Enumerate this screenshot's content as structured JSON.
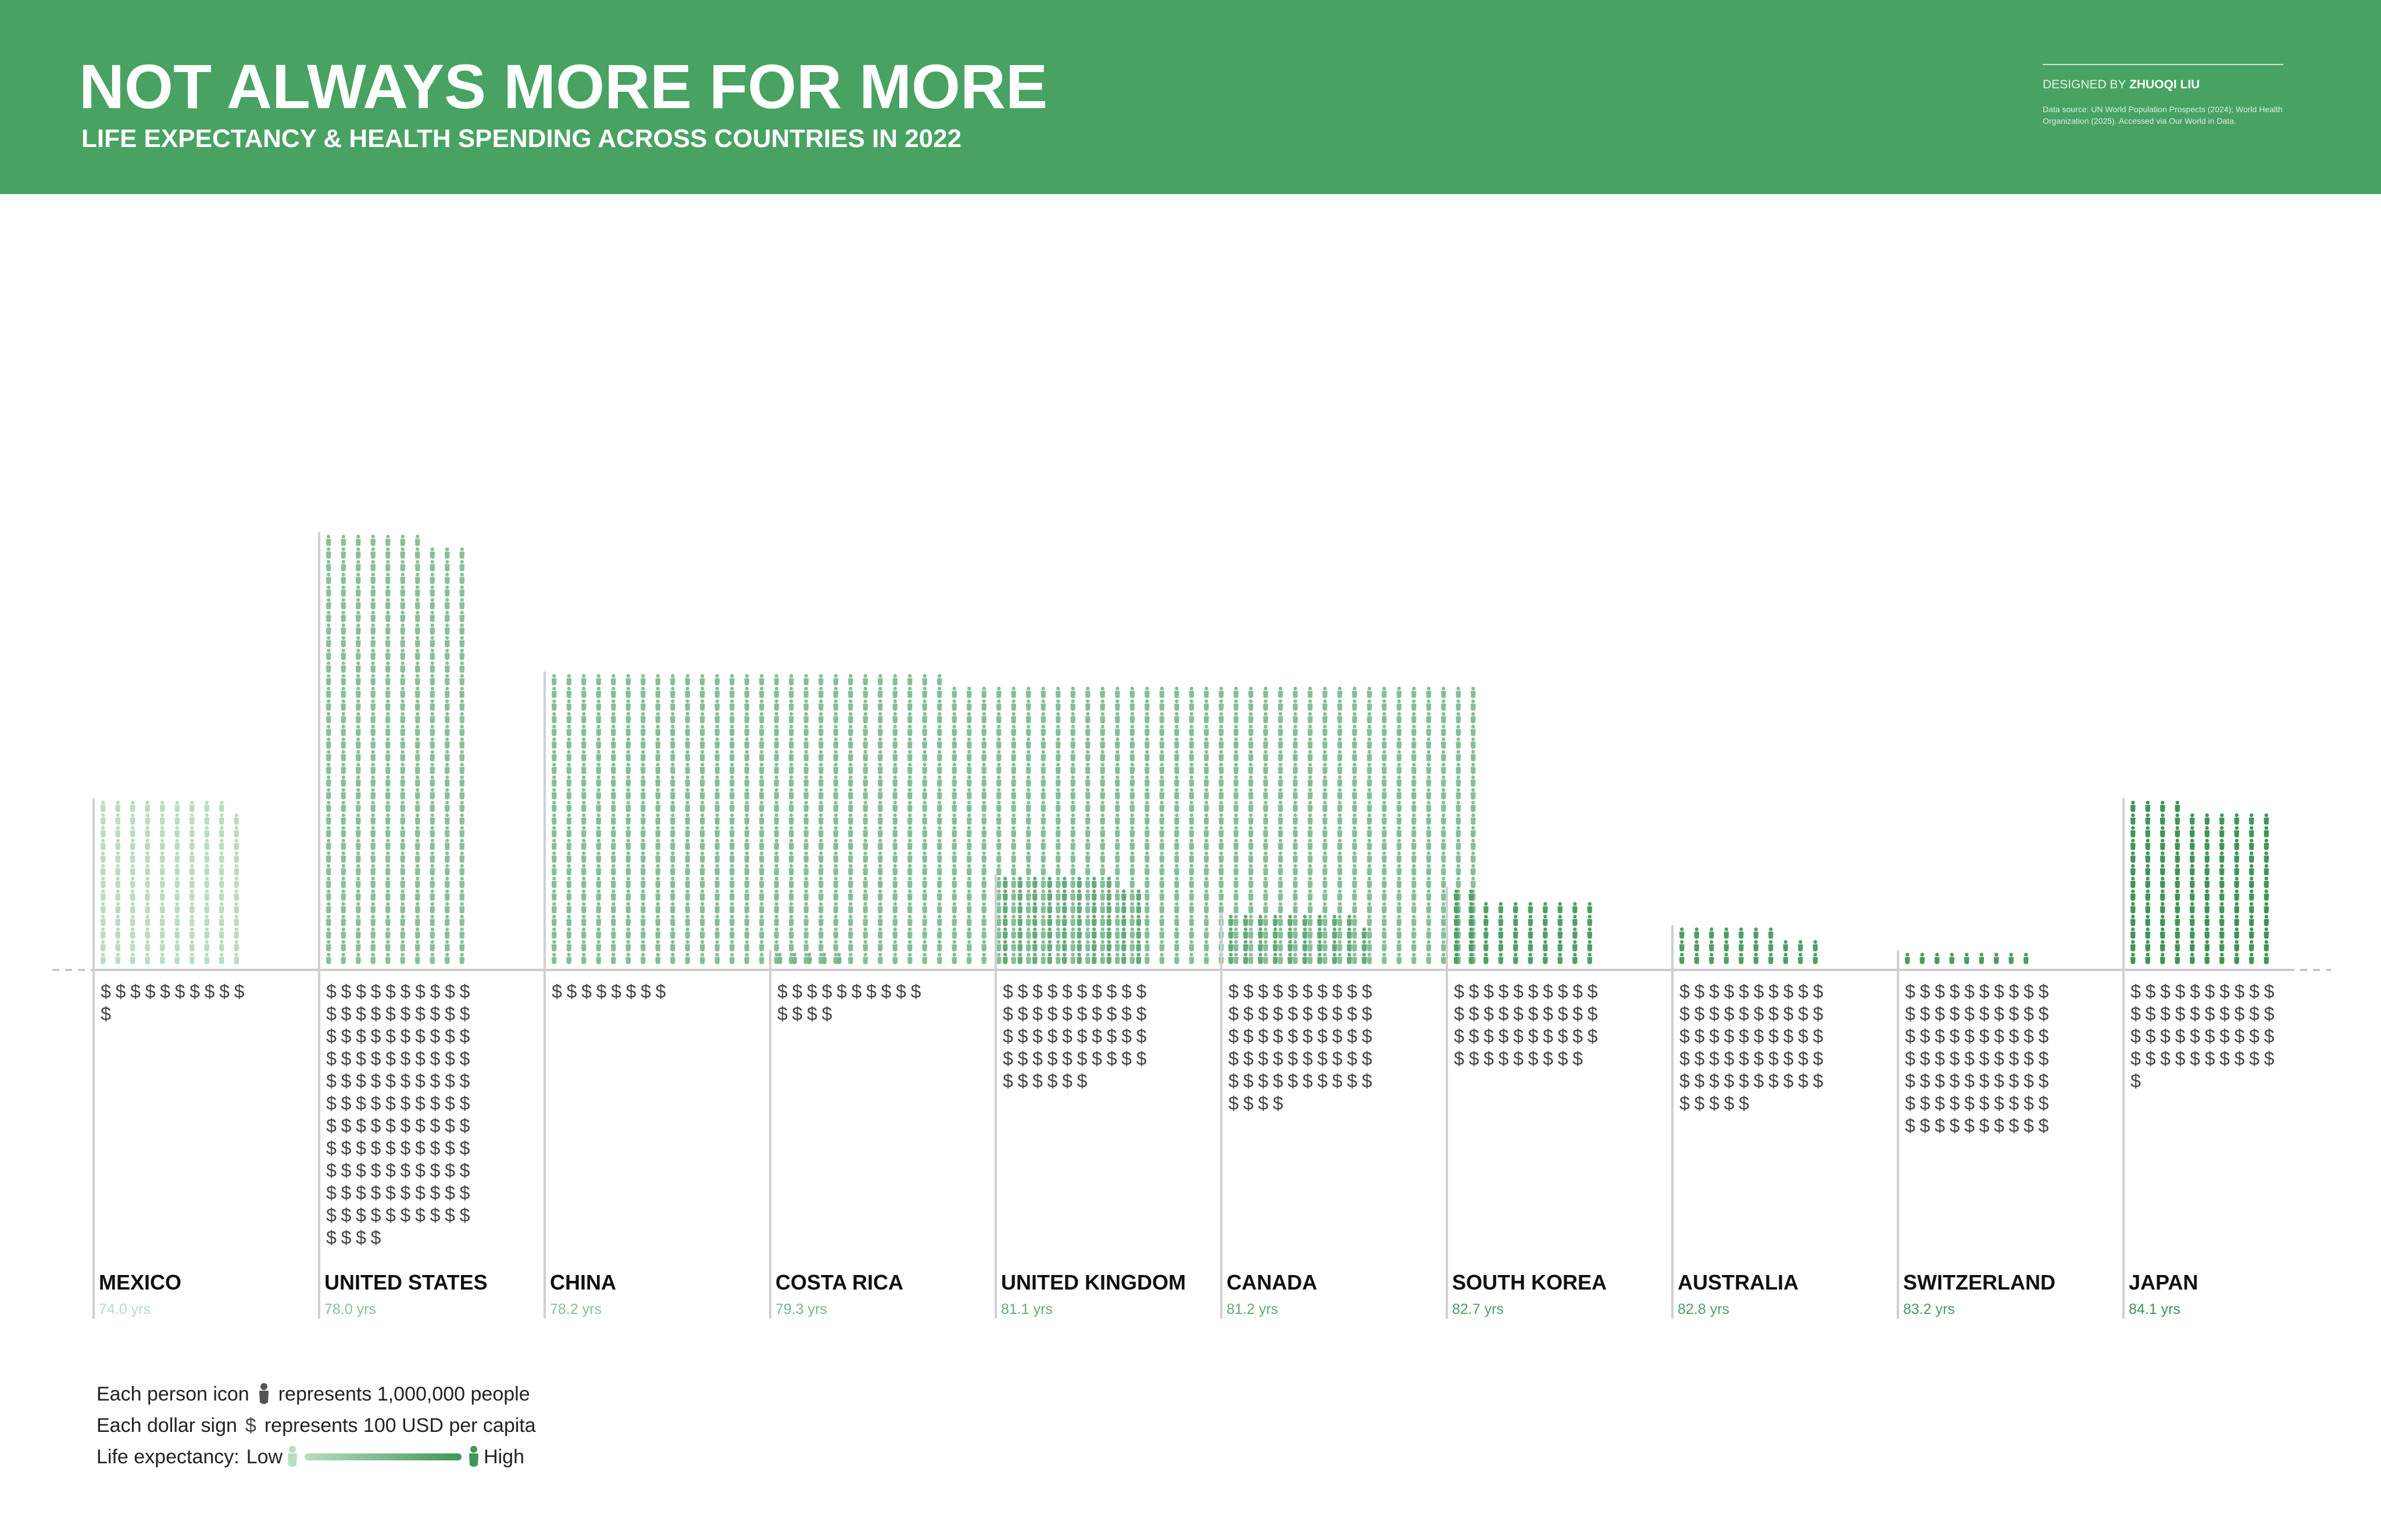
{
  "header": {
    "title": "NOT ALWAYS MORE FOR MORE",
    "subtitle": "LIFE EXPECTANCY & HEALTH SPENDING ACROSS COUNTRIES IN 2022",
    "designed_by_prefix": "DESIGNED BY ",
    "designer": "ZHUOQI LIU",
    "source": "Data source: UN World Population Prospects (2024); World Health Organization (2025). Accessed via Our World in Data."
  },
  "colors": {
    "header_bg": "#48a262",
    "low": "#b9dcc3",
    "high": "#3f9657",
    "dollar": "#444444",
    "label": "#111111"
  },
  "legend": {
    "person_prefix": "Each person icon",
    "person_suffix": "represents 1,000,000 people",
    "dollar_prefix": "Each dollar sign",
    "dollar_suffix": "represents 100 USD per capita",
    "life_label": "Life expectancy:",
    "low_label": "Low",
    "high_label": "High",
    "dollar_glyph": "$"
  },
  "chart_data": {
    "type": "pictogram",
    "units": {
      "person_icon": "1,000,000 people",
      "dollar_sign": "100 USD per capita"
    },
    "countries": [
      {
        "name": "MEXICO",
        "life_expectancy": 74.0,
        "life_label": "74.0 yrs",
        "population_icons": 129,
        "dollar_signs": 11
      },
      {
        "name": "UNITED STATES",
        "life_expectancy": 78.0,
        "life_label": "78.0 yrs",
        "population_icons": 337,
        "dollar_signs": 114
      },
      {
        "name": "CHINA",
        "life_expectancy": 78.2,
        "life_label": "78.2 yrs",
        "population_icons": 1413,
        "dollar_signs": 8
      },
      {
        "name": "COSTA RICA",
        "life_expectancy": 79.3,
        "life_label": "79.3 yrs",
        "population_icons": 5,
        "dollar_signs": 14
      },
      {
        "name": "UNITED KINGDOM",
        "life_expectancy": 81.1,
        "life_label": "81.1 yrs",
        "population_icons": 68,
        "dollar_signs": 46
      },
      {
        "name": "CANADA",
        "life_expectancy": 81.2,
        "life_label": "81.2 yrs",
        "population_icons": 39,
        "dollar_signs": 54
      },
      {
        "name": "SOUTH KOREA",
        "life_expectancy": 82.7,
        "life_label": "82.7 yrs",
        "population_icons": 52,
        "dollar_signs": 39
      },
      {
        "name": "AUSTRALIA",
        "life_expectancy": 82.8,
        "life_label": "82.8 yrs",
        "population_icons": 27,
        "dollar_signs": 55
      },
      {
        "name": "SWITZERLAND",
        "life_expectancy": 83.2,
        "life_label": "83.2 yrs",
        "population_icons": 9,
        "dollar_signs": 70
      },
      {
        "name": "JAPAN",
        "life_expectancy": 84.1,
        "life_label": "84.1 yrs",
        "population_icons": 124,
        "dollar_signs": 41
      }
    ],
    "life_expectancy_color_range": [
      74.0,
      84.1
    ]
  }
}
